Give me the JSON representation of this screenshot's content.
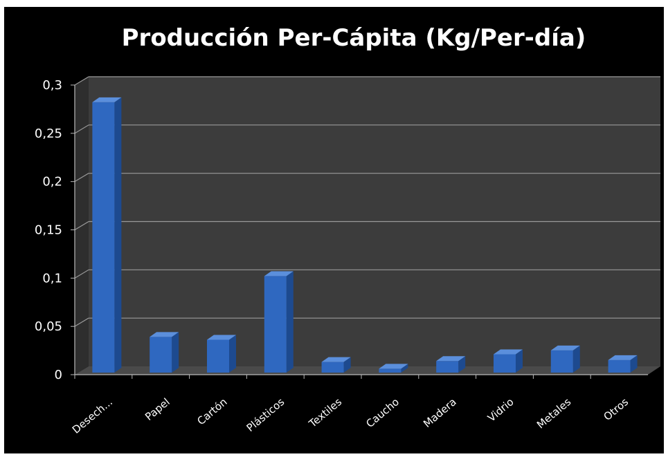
{
  "chart_data": {
    "type": "bar",
    "title": "Producción Per-Cápita (Kg/Per-día)",
    "xlabel": "",
    "ylabel": "",
    "categories": [
      "Desech...",
      "Papel",
      "Cartón",
      "Plásticos",
      "Textiles",
      "Caucho",
      "Madera",
      "Vidrio",
      "Metales",
      "Otros"
    ],
    "values": [
      0.28,
      0.037,
      0.034,
      0.1,
      0.011,
      0.004,
      0.012,
      0.019,
      0.023,
      0.013
    ],
    "ylim": [
      0,
      0.3
    ],
    "yticks": [
      "0",
      "0,05",
      "0,1",
      "0,15",
      "0,2",
      "0,25",
      "0,3"
    ],
    "grid": true,
    "legend": "none",
    "colors": {
      "background": "#000000",
      "wall": "#3c3c3c",
      "floor": "#4a4a4a",
      "bar_front": "#2f68c0",
      "bar_side": "#1d4a8f",
      "bar_top": "#5b8fdc",
      "gridline": "#9a9a9a",
      "text": "#ffffff"
    }
  }
}
